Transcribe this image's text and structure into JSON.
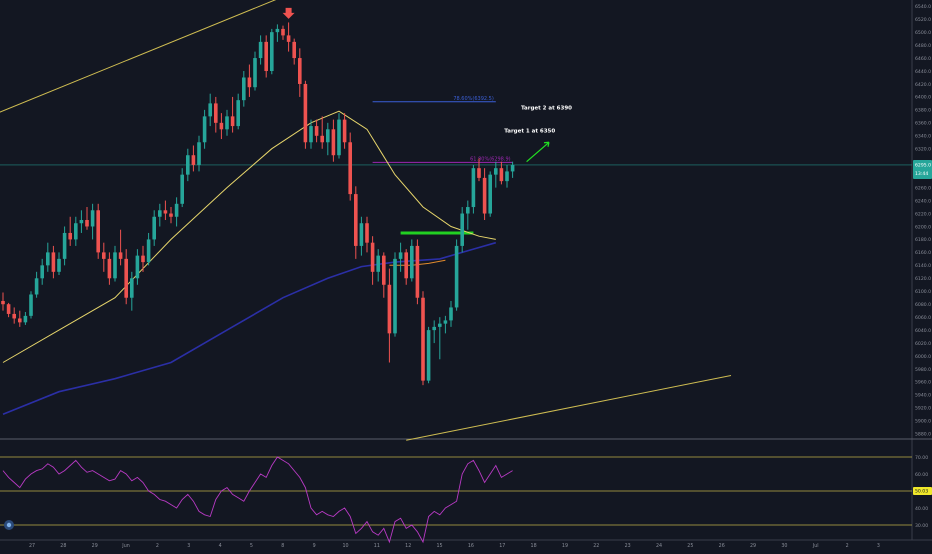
{
  "chart_data": {
    "type": "candlestick",
    "price_axis": {
      "ticks": [
        "6540.0",
        "6520.0",
        "6500.0",
        "6480.0",
        "6460.0",
        "6440.0",
        "6420.0",
        "6400.0",
        "6380.0",
        "6360.0",
        "6340.0",
        "6320.0",
        "6300.0",
        "6280.0",
        "6260.0",
        "6240.0",
        "6220.0",
        "6200.0",
        "6180.0",
        "6160.0",
        "6140.0",
        "6120.0",
        "6100.0",
        "6080.0",
        "6060.0",
        "6040.0",
        "6020.0",
        "6000.0",
        "5980.0",
        "5960.0",
        "5940.0",
        "5920.0",
        "5900.0",
        "5880.0"
      ],
      "range": [
        5875,
        6545
      ]
    },
    "last_price": {
      "value": 6295.0,
      "label": "6295.0",
      "countdown": "13:44",
      "line_color": "#26a69a"
    },
    "time_axis": {
      "ticks": [
        "27",
        "28",
        "29",
        "Jun",
        "2",
        "3",
        "4",
        "5",
        "8",
        "9",
        "10",
        "11",
        "12",
        "15",
        "16",
        "17",
        "18",
        "19",
        "22",
        "23",
        "24",
        "25",
        "26",
        "29",
        "30",
        "Jul",
        "2",
        "3"
      ]
    },
    "candles_ohlc": [
      [
        6085,
        6098,
        6070,
        6080
      ],
      [
        6080,
        6082,
        6060,
        6065
      ],
      [
        6065,
        6075,
        6050,
        6058
      ],
      [
        6058,
        6070,
        6045,
        6052
      ],
      [
        6052,
        6068,
        6048,
        6062
      ],
      [
        6062,
        6100,
        6058,
        6095
      ],
      [
        6095,
        6130,
        6090,
        6120
      ],
      [
        6120,
        6150,
        6110,
        6140
      ],
      [
        6140,
        6175,
        6130,
        6160
      ],
      [
        6160,
        6170,
        6120,
        6130
      ],
      [
        6130,
        6160,
        6125,
        6150
      ],
      [
        6150,
        6200,
        6140,
        6190
      ],
      [
        6190,
        6215,
        6170,
        6180
      ],
      [
        6180,
        6215,
        6170,
        6205
      ],
      [
        6205,
        6225,
        6190,
        6210
      ],
      [
        6210,
        6230,
        6195,
        6200
      ],
      [
        6200,
        6235,
        6180,
        6225
      ],
      [
        6225,
        6235,
        6150,
        6160
      ],
      [
        6160,
        6175,
        6130,
        6150
      ],
      [
        6150,
        6160,
        6110,
        6120
      ],
      [
        6120,
        6170,
        6115,
        6160
      ],
      [
        6160,
        6195,
        6140,
        6150
      ],
      [
        6150,
        6165,
        6080,
        6090
      ],
      [
        6090,
        6130,
        6070,
        6120
      ],
      [
        6120,
        6165,
        6110,
        6155
      ],
      [
        6155,
        6170,
        6130,
        6145
      ],
      [
        6145,
        6190,
        6140,
        6180
      ],
      [
        6180,
        6225,
        6170,
        6215
      ],
      [
        6215,
        6235,
        6200,
        6225
      ],
      [
        6225,
        6240,
        6210,
        6220
      ],
      [
        6220,
        6230,
        6205,
        6215
      ],
      [
        6215,
        6245,
        6200,
        6235
      ],
      [
        6235,
        6290,
        6230,
        6280
      ],
      [
        6280,
        6320,
        6270,
        6310
      ],
      [
        6310,
        6325,
        6285,
        6295
      ],
      [
        6295,
        6340,
        6285,
        6330
      ],
      [
        6330,
        6380,
        6320,
        6370
      ],
      [
        6370,
        6405,
        6355,
        6390
      ],
      [
        6390,
        6400,
        6345,
        6360
      ],
      [
        6360,
        6375,
        6335,
        6350
      ],
      [
        6350,
        6380,
        6340,
        6370
      ],
      [
        6370,
        6400,
        6345,
        6355
      ],
      [
        6355,
        6405,
        6350,
        6395
      ],
      [
        6395,
        6440,
        6385,
        6430
      ],
      [
        6430,
        6450,
        6400,
        6415
      ],
      [
        6415,
        6470,
        6410,
        6460
      ],
      [
        6460,
        6495,
        6450,
        6485
      ],
      [
        6485,
        6495,
        6430,
        6440
      ],
      [
        6440,
        6505,
        6435,
        6500
      ],
      [
        6500,
        6512,
        6485,
        6505
      ],
      [
        6505,
        6510,
        6488,
        6495
      ],
      [
        6495,
        6515,
        6470,
        6485
      ],
      [
        6485,
        6490,
        6450,
        6460
      ],
      [
        6460,
        6475,
        6400,
        6420
      ],
      [
        6420,
        6425,
        6320,
        6330
      ],
      [
        6330,
        6365,
        6320,
        6355
      ],
      [
        6355,
        6365,
        6330,
        6340
      ],
      [
        6340,
        6370,
        6320,
        6330
      ],
      [
        6330,
        6360,
        6310,
        6350
      ],
      [
        6350,
        6365,
        6300,
        6310
      ],
      [
        6310,
        6375,
        6305,
        6365
      ],
      [
        6365,
        6375,
        6320,
        6330
      ],
      [
        6330,
        6345,
        6240,
        6250
      ],
      [
        6250,
        6262,
        6150,
        6170
      ],
      [
        6170,
        6215,
        6155,
        6205
      ],
      [
        6205,
        6215,
        6160,
        6175
      ],
      [
        6175,
        6185,
        6110,
        6130
      ],
      [
        6130,
        6165,
        6115,
        6155
      ],
      [
        6155,
        6160,
        6090,
        6110
      ],
      [
        6110,
        6135,
        5990,
        6035
      ],
      [
        6035,
        6160,
        6030,
        6150
      ],
      [
        6150,
        6175,
        6130,
        6160
      ],
      [
        6160,
        6165,
        6110,
        6120
      ],
      [
        6120,
        6180,
        6115,
        6170
      ],
      [
        6170,
        6180,
        6080,
        6090
      ],
      [
        6090,
        6100,
        5955,
        5962
      ],
      [
        5962,
        6045,
        5958,
        6040
      ],
      [
        6040,
        6055,
        6020,
        6045
      ],
      [
        6045,
        6060,
        5995,
        6050
      ],
      [
        6050,
        6062,
        6035,
        6055
      ],
      [
        6055,
        6085,
        6045,
        6075
      ],
      [
        6075,
        6180,
        6070,
        6170
      ],
      [
        6170,
        6230,
        6160,
        6220
      ],
      [
        6220,
        6240,
        6195,
        6230
      ],
      [
        6230,
        6295,
        6220,
        6290
      ],
      [
        6290,
        6305,
        6270,
        6275
      ],
      [
        6275,
        6290,
        6210,
        6220
      ],
      [
        6220,
        6285,
        6215,
        6280
      ],
      [
        6280,
        6300,
        6260,
        6290
      ],
      [
        6290,
        6300,
        6265,
        6270
      ],
      [
        6270,
        6295,
        6260,
        6285
      ],
      [
        6285,
        6300,
        6275,
        6295
      ]
    ],
    "moving_averages": [
      {
        "color": "#e6d56b",
        "points": [
          [
            0,
            5990
          ],
          [
            10,
            6040
          ],
          [
            20,
            6090
          ],
          [
            30,
            6180
          ],
          [
            40,
            6260
          ],
          [
            48,
            6320
          ],
          [
            55,
            6360
          ],
          [
            60,
            6378
          ],
          [
            65,
            6350
          ],
          [
            70,
            6280
          ],
          [
            75,
            6230
          ],
          [
            80,
            6200
          ],
          [
            85,
            6185
          ],
          [
            88,
            6180
          ]
        ]
      },
      {
        "color": "#2b2fa6",
        "points": [
          [
            0,
            5910
          ],
          [
            10,
            5945
          ],
          [
            20,
            5965
          ],
          [
            30,
            5990
          ],
          [
            40,
            6040
          ],
          [
            50,
            6090
          ],
          [
            58,
            6120
          ],
          [
            64,
            6138
          ],
          [
            70,
            6145
          ],
          [
            78,
            6150
          ],
          [
            84,
            6165
          ],
          [
            88,
            6175
          ]
        ]
      },
      {
        "color": "#e08a2e",
        "points": [
          [
            69,
            6140
          ],
          [
            73,
            6140
          ],
          [
            76,
            6143
          ],
          [
            79,
            6148
          ]
        ]
      }
    ],
    "channel_lines": [
      {
        "color": "#cfbd52",
        "from": [
          -1,
          6375
        ],
        "to": [
          60,
          6590
        ]
      },
      {
        "color": "#cfbd52",
        "from": [
          72,
          5870
        ],
        "to": [
          130,
          5970
        ]
      }
    ],
    "horizontal_levels": [
      {
        "label": "78.60%(6392.5)",
        "value": 6392.5,
        "color": "#3b5fd6",
        "x_from": 66,
        "x_to": 88
      },
      {
        "label": "61.80%(6298.9)",
        "value": 6298.9,
        "color": "#9c27b0",
        "x_from": 66,
        "x_to": 91
      },
      {
        "label": "",
        "value": 6190,
        "color": "#22d122",
        "x_from": 71,
        "x_to": 84
      }
    ],
    "annotations": [
      {
        "text": "Target 2 at 6390",
        "x": 92.5,
        "y": 6385
      },
      {
        "text": "Target 1 at 6350",
        "x": 89.5,
        "y": 6350
      }
    ],
    "rsi": {
      "levels": [
        70,
        50,
        30
      ],
      "level_labels": [
        "70.00",
        "50.00",
        "30.00"
      ],
      "ticks": [
        "70.00",
        "60.00",
        "50.00",
        "40.00",
        "30.00"
      ],
      "current": {
        "value": 50.03,
        "label": "50.03"
      },
      "values": [
        62,
        58,
        55,
        52,
        57,
        60,
        62,
        63,
        66,
        64,
        60,
        62,
        65,
        68,
        64,
        61,
        62,
        60,
        58,
        56,
        57,
        62,
        60,
        56,
        58,
        55,
        50,
        48,
        45,
        44,
        42,
        40,
        45,
        48,
        44,
        38,
        36,
        35,
        45,
        50,
        52,
        48,
        46,
        44,
        50,
        55,
        60,
        58,
        65,
        70,
        68,
        66,
        62,
        58,
        52,
        40,
        36,
        38,
        36,
        35,
        38,
        40,
        35,
        25,
        28,
        32,
        26,
        24,
        28,
        20,
        32,
        34,
        28,
        30,
        26,
        20,
        35,
        38,
        36,
        40,
        42,
        44,
        60,
        66,
        68,
        62,
        55,
        60,
        65,
        58,
        60,
        62
      ]
    }
  }
}
